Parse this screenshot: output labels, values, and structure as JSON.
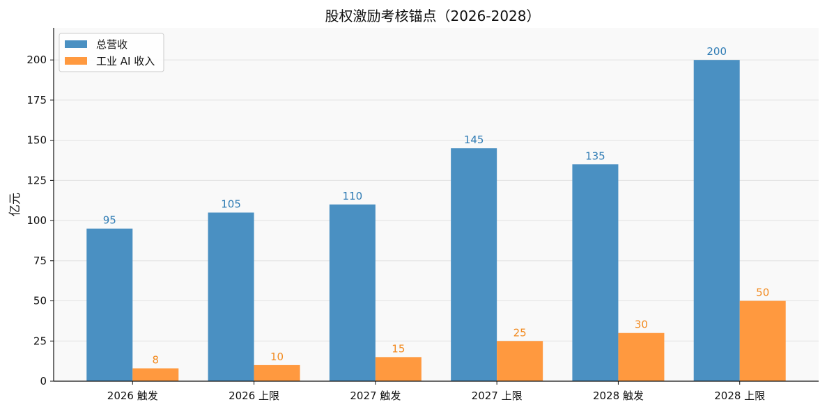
{
  "chart_data": {
    "type": "bar",
    "title": "股权激励考核锚点（2026-2028）",
    "xlabel": "",
    "ylabel": "亿元",
    "categories": [
      "2026 触发",
      "2026 上限",
      "2027 触发",
      "2027 上限",
      "2028 触发",
      "2028 上限"
    ],
    "series": [
      {
        "name": "总营收",
        "color": "#4a90c2",
        "label_color": "#2e7bb4",
        "values": [
          95,
          105,
          110,
          145,
          135,
          200
        ]
      },
      {
        "name": "工业 AI 收入",
        "color": "#ff993f",
        "label_color": "#f28a1f",
        "values": [
          8,
          10,
          15,
          25,
          30,
          50
        ]
      }
    ],
    "ylim": [
      0,
      220
    ],
    "yticks": [
      0,
      25,
      50,
      75,
      100,
      125,
      150,
      175,
      200
    ],
    "grid": true,
    "legend_position": "top-left",
    "plot_background": "#f9f9f9"
  }
}
